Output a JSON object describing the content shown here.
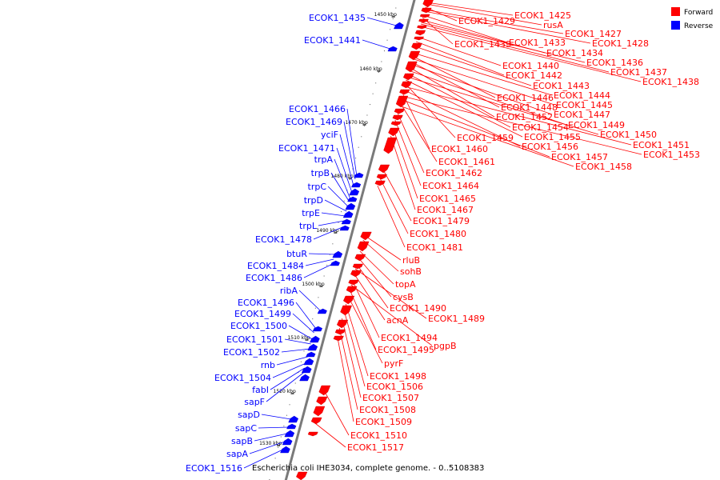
{
  "caption": "Escherichia coli IHE3034, complete genome. - 0..5108383",
  "legend": [
    {
      "label": "Forward",
      "color": "#ff0000"
    },
    {
      "label": "Reverse",
      "color": "#0000ff"
    }
  ],
  "ticks": [
    "1450 kbp",
    "1460 kbp",
    "1470 kbp",
    "1480 kbp",
    "1490 kbp",
    "1500 kbp",
    "1510 kbp",
    "1520 kbp",
    "1530 kbp"
  ],
  "forward_genes": [
    "ECOK1_1425",
    "rusA",
    "ECOK1_1429",
    "ECOK1_1427",
    "ECOK1_1428",
    "ECOK1_1433",
    "ECOK1_1439",
    "ECOK1_1434",
    "ECOK1_1436",
    "ECOK1_1437",
    "ECOK1_1438",
    "ECOK1_1440",
    "ECOK1_1442",
    "ECOK1_1443",
    "ECOK1_1444",
    "ECOK1_1446",
    "ECOK1_1445",
    "ECOK1_1448",
    "ECOK1_1447",
    "ECOK1_1452",
    "ECOK1_1449",
    "ECOK1_1454",
    "ECOK1_1450",
    "ECOK1_1455",
    "ECOK1_1459",
    "ECOK1_1451",
    "ECOK1_1456",
    "ECOK1_1460",
    "ECOK1_1453",
    "ECOK1_1457",
    "ECOK1_1461",
    "ECOK1_1458",
    "ECOK1_1462",
    "ECOK1_1464",
    "ECOK1_1465",
    "ECOK1_1467",
    "ECOK1_1479",
    "ECOK1_1480",
    "ECOK1_1481",
    "rluB",
    "sohB",
    "topA",
    "cysB",
    "ECOK1_1490",
    "ECOK1_1489",
    "acnA",
    "ECOK1_1494",
    "pgpB",
    "ECOK1_1495",
    "pyrF",
    "ECOK1_1498",
    "ECOK1_1506",
    "ECOK1_1507",
    "ECOK1_1508",
    "ECOK1_1509",
    "ECOK1_1510",
    "ECOK1_1517"
  ],
  "reverse_genes": [
    "ECOK1_1435",
    "ECOK1_1441",
    "ECOK1_1466",
    "ECOK1_1469",
    "yciF",
    "ECOK1_1471",
    "trpA",
    "trpB",
    "trpC",
    "trpD",
    "trpE",
    "trpL",
    "ECOK1_1478",
    "btuR",
    "ECOK1_1484",
    "ECOK1_1486",
    "ribA",
    "ECOK1_1496",
    "ECOK1_1499",
    "ECOK1_1500",
    "ECOK1_1501",
    "ECOK1_1502",
    "rnb",
    "ECOK1_1504",
    "fabI",
    "sapF",
    "sapD",
    "sapC",
    "sapB",
    "sapA",
    "ECOK1_1516"
  ]
}
